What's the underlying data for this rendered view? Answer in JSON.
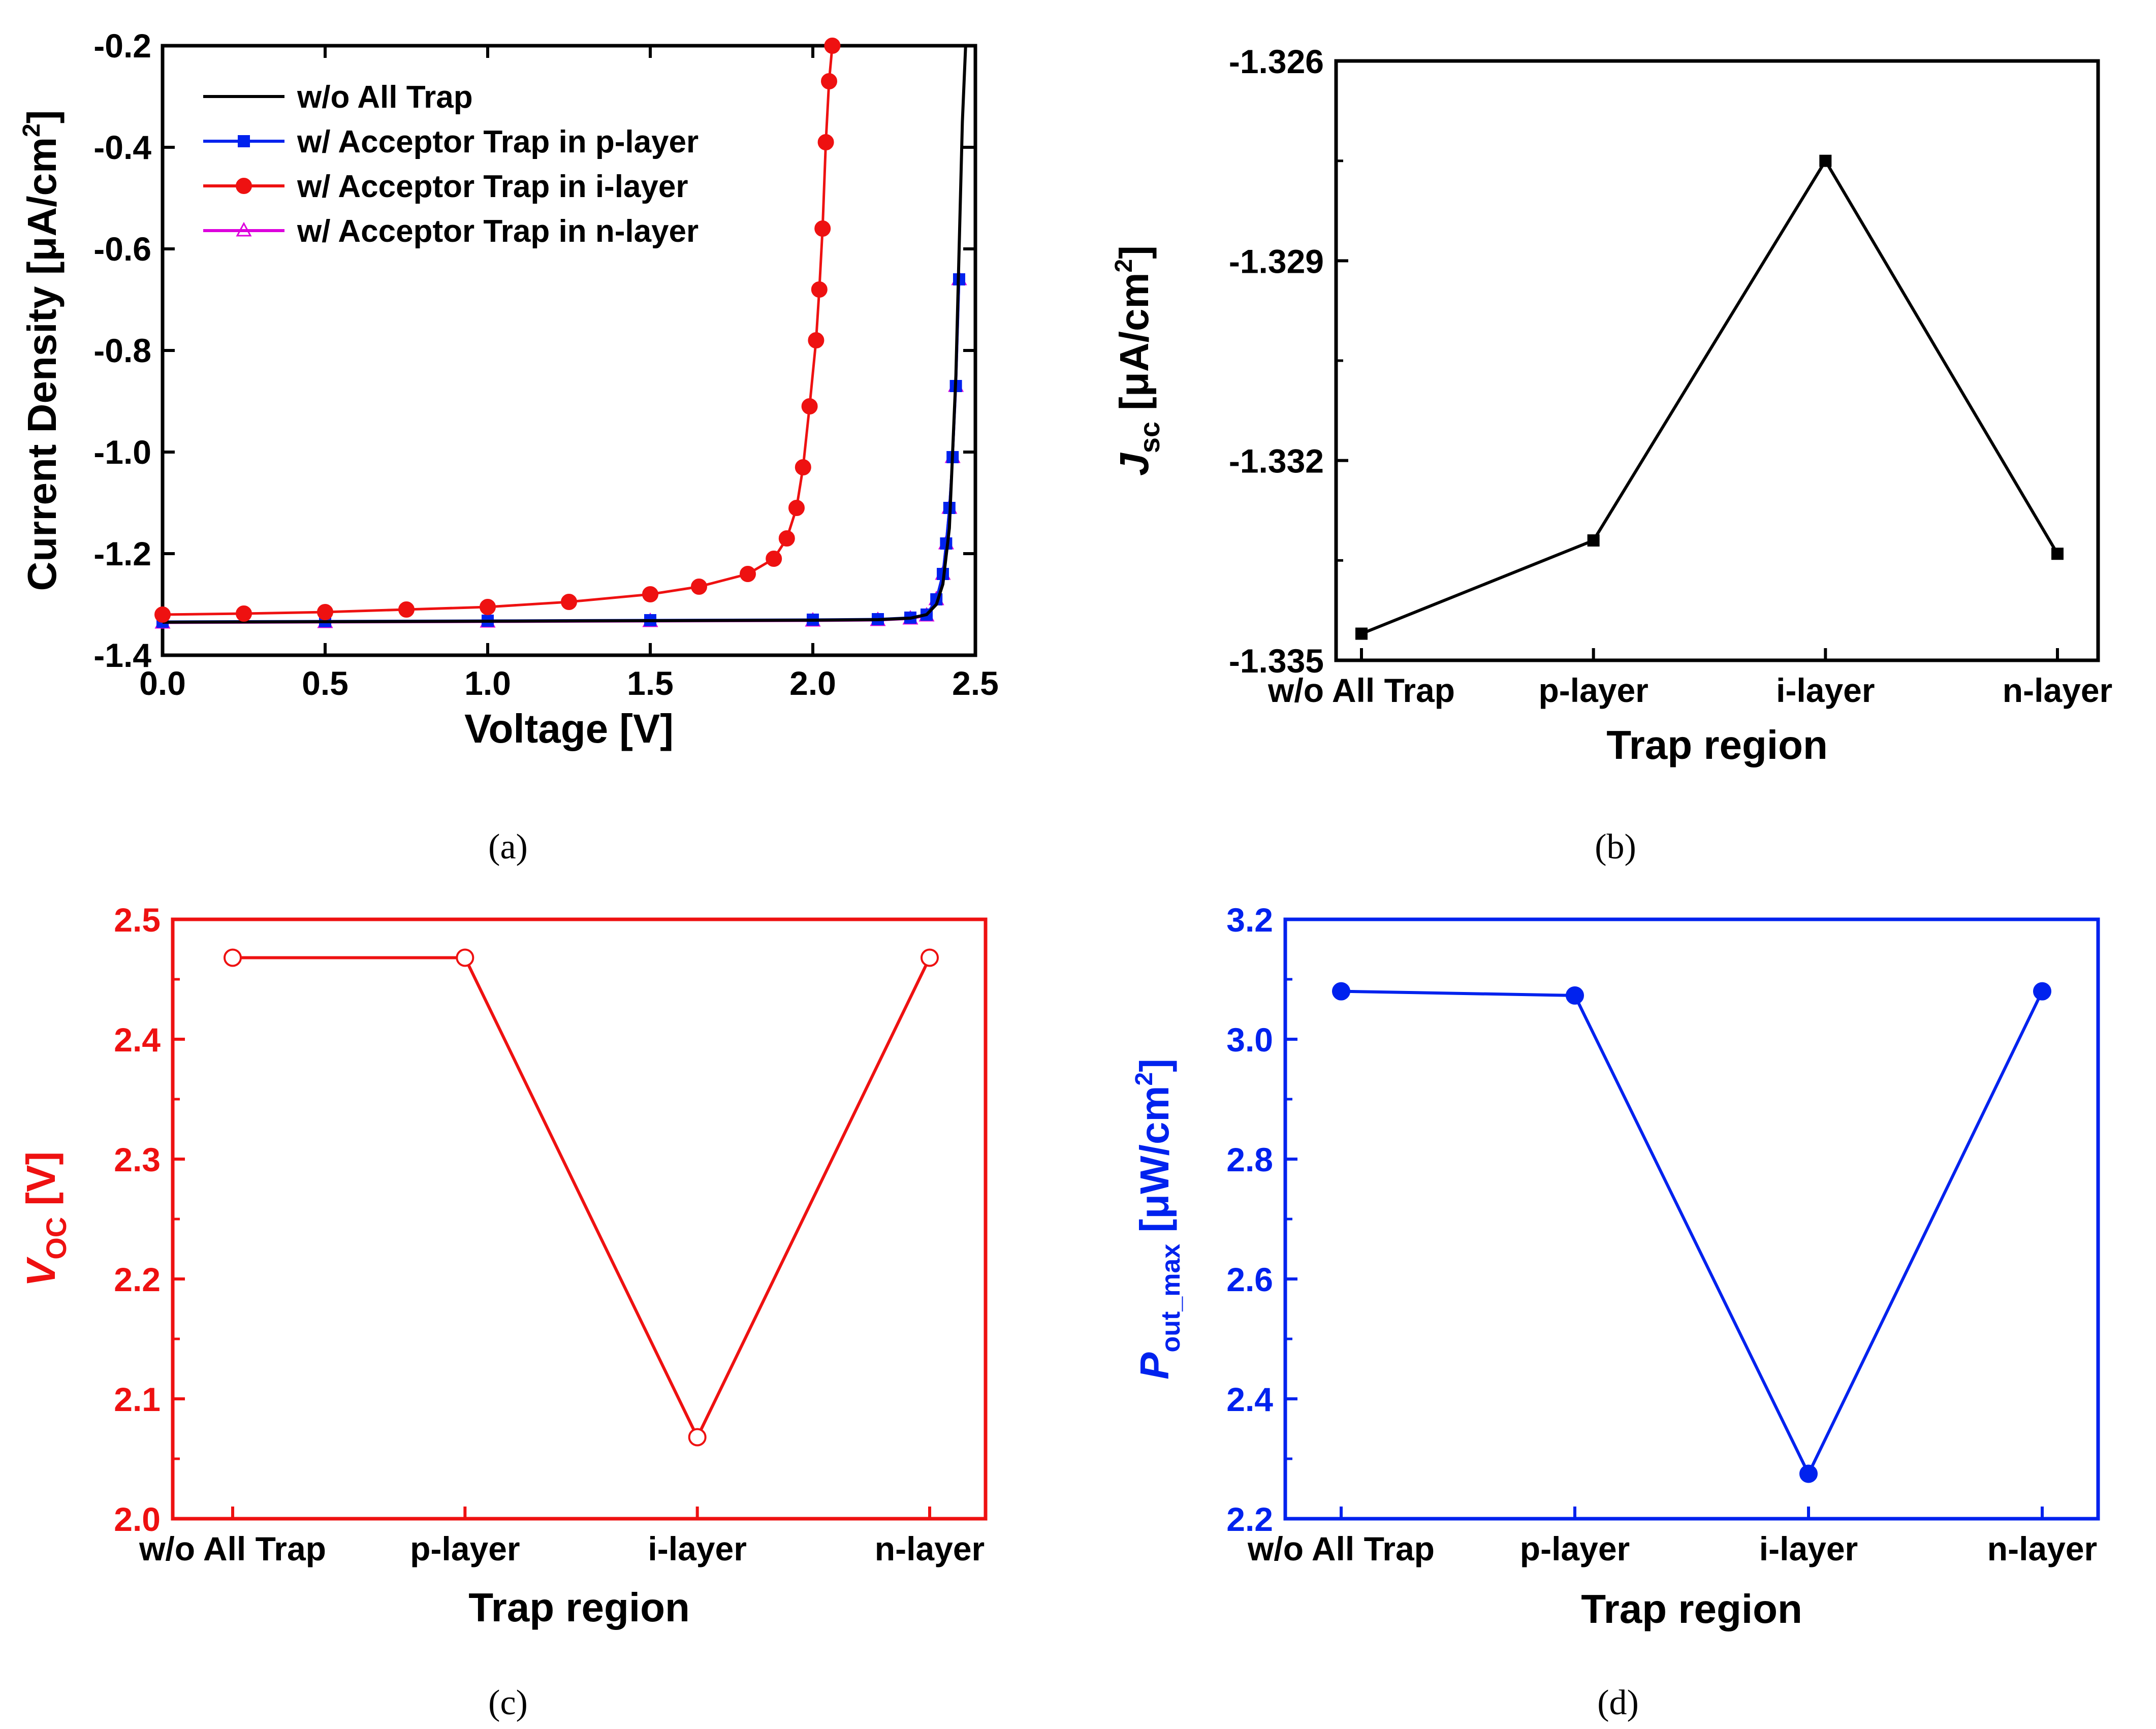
{
  "colors": {
    "black": "#000000",
    "blue": "#0022ee",
    "red": "#ee1111",
    "magenta": "#dd00dd"
  },
  "chart_data": [
    {
      "id": "a",
      "type": "line",
      "caption": "(a)",
      "xlabel": "Voltage [V]",
      "ylabel": {
        "main": "Current Density [",
        "mu": "μ",
        "unit": "A/cm",
        "sup": "2",
        "tail": "]"
      },
      "xlim": [
        0.0,
        2.5
      ],
      "ylim": [
        -1.4,
        -0.2
      ],
      "xticks": [
        "0.0",
        "0.5",
        "1.0",
        "1.5",
        "2.0",
        "2.5"
      ],
      "yticks": [
        "-0.2",
        "-0.4",
        "-0.6",
        "-0.8",
        "-1.0",
        "-1.2",
        "-1.4"
      ],
      "legend_position": "top-left",
      "series": [
        {
          "name": "w/o All Trap",
          "marker": "none",
          "color": "black",
          "x": [
            0.0,
            0.5,
            1.0,
            1.5,
            2.0,
            2.2,
            2.3,
            2.35,
            2.38,
            2.4,
            2.42,
            2.44,
            2.45,
            2.46,
            2.47
          ],
          "y": [
            -1.335,
            -1.334,
            -1.333,
            -1.332,
            -1.331,
            -1.33,
            -1.327,
            -1.32,
            -1.3,
            -1.26,
            -1.15,
            -0.85,
            -0.6,
            -0.35,
            -0.2
          ]
        },
        {
          "name": "w/ Acceptor Trap in p-layer",
          "marker": "square",
          "color": "blue",
          "x": [
            0.0,
            0.5,
            1.0,
            1.5,
            2.0,
            2.2,
            2.3,
            2.35,
            2.38,
            2.4,
            2.41,
            2.42,
            2.43,
            2.44,
            2.45
          ],
          "y": [
            -1.334,
            -1.333,
            -1.332,
            -1.331,
            -1.33,
            -1.329,
            -1.326,
            -1.32,
            -1.29,
            -1.24,
            -1.18,
            -1.11,
            -1.01,
            -0.87,
            -0.66
          ]
        },
        {
          "name": "w/ Acceptor Trap in i-layer",
          "marker": "circle",
          "color": "red",
          "x": [
            0.0,
            0.25,
            0.5,
            0.75,
            1.0,
            1.25,
            1.5,
            1.65,
            1.8,
            1.88,
            1.92,
            1.95,
            1.97,
            1.99,
            2.01,
            2.02,
            2.03,
            2.04,
            2.05,
            2.06
          ],
          "y": [
            -1.32,
            -1.318,
            -1.315,
            -1.31,
            -1.305,
            -1.295,
            -1.28,
            -1.265,
            -1.24,
            -1.21,
            -1.17,
            -1.11,
            -1.03,
            -0.91,
            -0.78,
            -0.68,
            -0.56,
            -0.39,
            -0.27,
            -0.2
          ]
        },
        {
          "name": "w/ Acceptor Trap in n-layer",
          "marker": "triangle",
          "color": "magenta",
          "x": [
            0.0,
            0.5,
            1.0,
            1.5,
            2.0,
            2.2,
            2.3,
            2.35,
            2.38,
            2.4,
            2.41,
            2.42,
            2.43,
            2.44,
            2.45
          ],
          "y": [
            -1.336,
            -1.335,
            -1.334,
            -1.333,
            -1.332,
            -1.331,
            -1.328,
            -1.322,
            -1.29,
            -1.24,
            -1.18,
            -1.11,
            -1.01,
            -0.87,
            -0.66
          ]
        }
      ]
    },
    {
      "id": "b",
      "type": "line",
      "caption": "(b)",
      "xlabel": "Trap region",
      "ylabel": {
        "main": "J",
        "sub": "sc",
        "mid": " [",
        "mu": "μ",
        "unit": "A/cm",
        "sup": "2",
        "tail": "]"
      },
      "categories": [
        "w/o All Trap",
        "p-layer",
        "i-layer",
        "n-layer"
      ],
      "values": [
        -1.3346,
        -1.3332,
        -1.3275,
        -1.3334
      ],
      "ylim": [
        -1.335,
        -1.326
      ],
      "yticks": [
        "-1.326",
        "-1.329",
        "-1.332",
        "-1.335"
      ],
      "marker": "square",
      "color": "black"
    },
    {
      "id": "c",
      "type": "line",
      "caption": "(c)",
      "xlabel": "Trap region",
      "ylabel": {
        "main": "V",
        "sub": "OC",
        "tail": " [V]"
      },
      "categories": [
        "w/o All Trap",
        "p-layer",
        "i-layer",
        "n-layer"
      ],
      "values": [
        2.468,
        2.468,
        2.068,
        2.468
      ],
      "ylim": [
        2.0,
        2.5
      ],
      "yticks": [
        "2.5",
        "2.4",
        "2.3",
        "2.2",
        "2.1",
        "2.0"
      ],
      "marker": "open-circle",
      "color": "red"
    },
    {
      "id": "d",
      "type": "line",
      "caption": "(d)",
      "xlabel": "Trap region",
      "ylabel": {
        "main": "P",
        "sub": "out_max",
        "mid": " [",
        "mu": "μ",
        "unit": "W/cm",
        "sup": "2",
        "tail": "]"
      },
      "categories": [
        "w/o All Trap",
        "p-layer",
        "i-layer",
        "n-layer"
      ],
      "values": [
        3.08,
        3.073,
        2.275,
        3.08
      ],
      "ylim": [
        2.2,
        3.2
      ],
      "yticks": [
        "3.2",
        "3.0",
        "2.8",
        "2.6",
        "2.4",
        "2.2"
      ],
      "marker": "filled-circle",
      "color": "blue"
    }
  ]
}
